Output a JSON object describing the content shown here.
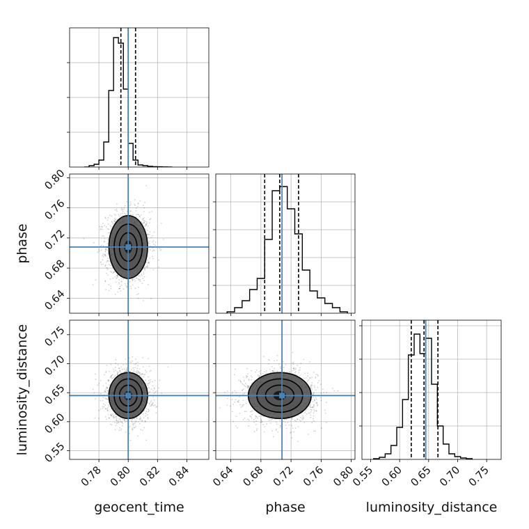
{
  "chart_data": {
    "type": "corner",
    "parameters": [
      "geocent_time",
      "phase",
      "luminosity_distance"
    ],
    "truths": [
      0.8,
      0.708,
      0.645
    ],
    "truth_color": "#4682b4",
    "quantile_lines": {
      "geocent_time": [
        0.795,
        0.8,
        0.805
      ],
      "phase": [
        0.685,
        0.705,
        0.73
      ],
      "luminosity_distance": [
        0.62,
        0.642,
        0.666
      ]
    },
    "panels": [
      {
        "id": "hist-geocent_time",
        "kind": "hist",
        "xlim": [
          0.76,
          0.855
        ],
        "ylim": [
          0,
          1.0
        ],
        "xticks": [
          0.78,
          0.8,
          0.82,
          0.84
        ],
        "ytick_values": [
          0.25,
          0.5,
          0.75
        ],
        "bin_edges": [
          0.77,
          0.7733,
          0.7767,
          0.78,
          0.7833,
          0.7867,
          0.79,
          0.7933,
          0.7967,
          0.8,
          0.8033,
          0.8067,
          0.81,
          0.8133,
          0.8167,
          0.82,
          0.8233,
          0.8267,
          0.83
        ],
        "bin_values": [
          0.0,
          0.01,
          0.02,
          0.05,
          0.18,
          0.55,
          0.93,
          0.89,
          0.56,
          0.17,
          0.05,
          0.015,
          0.01,
          0.005,
          0.003,
          0.002,
          0.001,
          0.0
        ]
      },
      {
        "id": "scatter-phase-vs-geocent_time",
        "kind": "2d",
        "xlim": [
          0.76,
          0.855
        ],
        "ylim": [
          0.62,
          0.805
        ],
        "xticks": [
          0.78,
          0.8,
          0.82,
          0.84
        ],
        "yticks": [
          0.64,
          0.68,
          0.72,
          0.76,
          0.8
        ],
        "ytick_labels": [
          "0.64",
          "0.68",
          "0.72",
          "0.76",
          "0.80"
        ],
        "center": [
          0.8,
          0.708
        ],
        "spread": [
          0.006,
          0.019
        ],
        "contours_sigma": [
          1.0,
          1.6,
          2.2
        ]
      },
      {
        "id": "scatter-luminosity_distance-vs-geocent_time",
        "kind": "2d",
        "xlim": [
          0.76,
          0.855
        ],
        "ylim": [
          0.535,
          0.775
        ],
        "xticks": [
          0.78,
          0.8,
          0.82,
          0.84
        ],
        "xtick_labels": [
          "0.78",
          "0.80",
          "0.82",
          "0.84"
        ],
        "yticks": [
          0.55,
          0.6,
          0.65,
          0.7,
          0.75
        ],
        "ytick_labels": [
          "0.55",
          "0.60",
          "0.65",
          "0.70",
          "0.75"
        ],
        "center": [
          0.8,
          0.645
        ],
        "spread": [
          0.006,
          0.018
        ],
        "contours_sigma": [
          1.0,
          1.6,
          2.2
        ]
      },
      {
        "id": "hist-phase",
        "kind": "hist",
        "xlim": [
          0.62,
          0.805
        ],
        "ylim": [
          0,
          1.0
        ],
        "xticks": [
          0.64,
          0.68,
          0.72,
          0.76,
          0.8
        ],
        "ytick_values": [
          0.2,
          0.4,
          0.6,
          0.8
        ],
        "bin_edges": [
          0.635,
          0.645,
          0.655,
          0.665,
          0.675,
          0.685,
          0.695,
          0.705,
          0.715,
          0.725,
          0.735,
          0.745,
          0.755,
          0.765,
          0.775,
          0.785,
          0.795
        ],
        "bin_values": [
          0.01,
          0.04,
          0.09,
          0.17,
          0.25,
          0.53,
          0.88,
          0.91,
          0.75,
          0.57,
          0.31,
          0.16,
          0.11,
          0.07,
          0.04,
          0.01
        ]
      },
      {
        "id": "scatter-luminosity_distance-vs-phase",
        "kind": "2d",
        "xlim": [
          0.62,
          0.805
        ],
        "ylim": [
          0.535,
          0.775
        ],
        "xticks": [
          0.64,
          0.68,
          0.72,
          0.76,
          0.8
        ],
        "xtick_labels": [
          "0.64",
          "0.68",
          "0.72",
          "0.76",
          "0.80"
        ],
        "yticks": [
          0.55,
          0.6,
          0.65,
          0.7,
          0.75
        ],
        "center": [
          0.705,
          0.645
        ],
        "spread": [
          0.019,
          0.018
        ],
        "contours_sigma": [
          1.0,
          1.6,
          2.2
        ]
      },
      {
        "id": "hist-luminosity_distance",
        "kind": "hist",
        "xlim": [
          0.535,
          0.775
        ],
        "ylim": [
          0,
          1.0
        ],
        "xticks": [
          0.55,
          0.6,
          0.65,
          0.7,
          0.75
        ],
        "xtick_labels": [
          "0.55",
          "0.60",
          "0.65",
          "0.70",
          "0.75"
        ],
        "ytick_values": [
          0.24,
          0.48,
          0.72,
          0.96
        ],
        "bin_edges": [
          0.555,
          0.565,
          0.575,
          0.585,
          0.595,
          0.605,
          0.615,
          0.625,
          0.635,
          0.645,
          0.655,
          0.665,
          0.675,
          0.685,
          0.695,
          0.705,
          0.715,
          0.725
        ],
        "bin_values": [
          0.005,
          0.015,
          0.04,
          0.1,
          0.23,
          0.43,
          0.75,
          0.9,
          0.76,
          0.87,
          0.54,
          0.24,
          0.11,
          0.04,
          0.02,
          0.01,
          0.005
        ]
      }
    ],
    "axis_labels": {
      "geocent_time": "geocent_time",
      "phase": "phase",
      "luminosity_distance": "luminosity_distance"
    },
    "grid": true
  }
}
